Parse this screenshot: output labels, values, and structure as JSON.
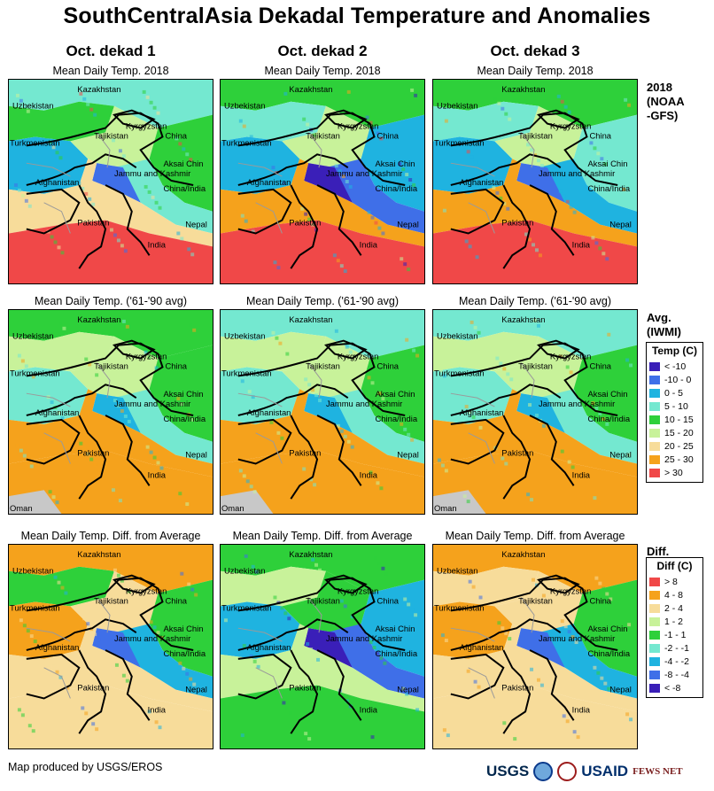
{
  "title": "SouthCentralAsia Dekadal Temperature and Anomalies",
  "columns": [
    "Oct. dekad 1",
    "Oct. dekad 2",
    "Oct. dekad 3"
  ],
  "rows": [
    {
      "caption": "Mean Daily Temp. 2018",
      "side_label": [
        "2018",
        "(NOAA",
        "-GFS)"
      ]
    },
    {
      "caption": "Mean Daily Temp. ('61-'90 avg)",
      "side_label": [
        "Avg.",
        "(IWMI)"
      ]
    },
    {
      "caption": "Mean Daily Temp. Diff. from Average",
      "side_label": [
        "Diff."
      ]
    }
  ],
  "map_labels": {
    "kazakhstan": "Kazakhstan",
    "uzbekistan": "Uzbekistan",
    "kyrgyzstan": "Kyrgyzstan",
    "tajikistan": "Tajikistan",
    "turkmenistan": "Turkmenistan",
    "china": "China",
    "aksai_chin": "Aksai Chin",
    "jammu": "Jammu and Kashmir",
    "china_india": "China/India",
    "afghanistan": "Afghanistan",
    "pakistan": "Pakistan",
    "nepal": "Nepal",
    "india": "India",
    "oman": "Oman"
  },
  "legend_temp": {
    "title": "Temp (C)",
    "items": [
      {
        "label": "< -10",
        "color": "#3a1fb8"
      },
      {
        "label": "-10 - 0",
        "color": "#3f6fe8"
      },
      {
        "label": "0 - 5",
        "color": "#1fb3e0"
      },
      {
        "label": "5 - 10",
        "color": "#74e8d0"
      },
      {
        "label": "10 - 15",
        "color": "#2ed03a"
      },
      {
        "label": "15 - 20",
        "color": "#c8f29a"
      },
      {
        "label": "20 - 25",
        "color": "#f7dc9a"
      },
      {
        "label": "25 - 30",
        "color": "#f5a21c"
      },
      {
        "label": "> 30",
        "color": "#f04848"
      }
    ]
  },
  "legend_diff": {
    "title": "Diff (C)",
    "items": [
      {
        "label": "> 8",
        "color": "#f04848"
      },
      {
        "label": "4 - 8",
        "color": "#f5a21c"
      },
      {
        "label": "2 - 4",
        "color": "#f7dc9a"
      },
      {
        "label": "1 - 2",
        "color": "#c8f29a"
      },
      {
        "label": "-1 - 1",
        "color": "#2ed03a"
      },
      {
        "label": "-2 - -1",
        "color": "#74e8d0"
      },
      {
        "label": "-4 - -2",
        "color": "#1fb3e0"
      },
      {
        "label": "-8 - -4",
        "color": "#3f6fe8"
      },
      {
        "label": "< -8",
        "color": "#3a1fb8"
      }
    ]
  },
  "footer": "Map produced by USGS/EROS",
  "logos": {
    "usgs": "USGS",
    "usaid": "USAID",
    "fews": "FEWS NET"
  },
  "map_schemes": [
    [
      "c4a",
      "c5b",
      "c3a",
      "c6a",
      "c5a",
      "c4b",
      "c2a",
      "c7",
      "c9a"
    ],
    [
      "c5b",
      "c4b",
      "c3a",
      "c6a",
      "c3b",
      "c2b",
      "c1a",
      "c8",
      "c9b"
    ],
    [
      "c5b",
      "c4b",
      "c3a",
      "c6a",
      "c4a",
      "c3b",
      "c2a",
      "c8",
      "c9b"
    ],
    [
      "c5a",
      "c6b",
      "c4a",
      "c6a",
      "c5a",
      "c4b",
      "c3a",
      "c8",
      "c8b"
    ],
    [
      "c4b",
      "c6b",
      "c4a",
      "c6a",
      "c5a",
      "c4b",
      "c3a",
      "c8",
      "c8b"
    ],
    [
      "c4a",
      "c6b",
      "c4a",
      "c6a",
      "c5a",
      "c4b",
      "c3a",
      "c8",
      "c8b"
    ],
    [
      "c8a",
      "c5b",
      "c8a",
      "c7a",
      "c5a",
      "c3a",
      "c2a",
      "c7",
      "c7b"
    ],
    [
      "c5a",
      "c6b",
      "c3a",
      "c5b",
      "c3a",
      "c2b",
      "c1a",
      "c6",
      "c5b"
    ],
    [
      "c8a",
      "c7b",
      "c8a",
      "c7a",
      "c5a",
      "c3b",
      "c2a",
      "c7",
      "c7b"
    ]
  ],
  "palette": {
    "c1a": "#3a1fb8",
    "c2a": "#3f6fe8",
    "c2b": "#3f6fe8",
    "c3a": "#1fb3e0",
    "c3b": "#1fb3e0",
    "c4a": "#74e8d0",
    "c4b": "#74e8d0",
    "c5a": "#2ed03a",
    "c5b": "#2ed03a",
    "c6": "#c8f29a",
    "c6a": "#c8f29a",
    "c6b": "#c8f29a",
    "c7": "#f7dc9a",
    "c7a": "#f7dc9a",
    "c7b": "#f7dc9a",
    "c8": "#f5a21c",
    "c8a": "#f5a21c",
    "c8b": "#f5a21c",
    "c9a": "#f04848",
    "c9b": "#f04848",
    "gray": "#c8c8c8"
  }
}
